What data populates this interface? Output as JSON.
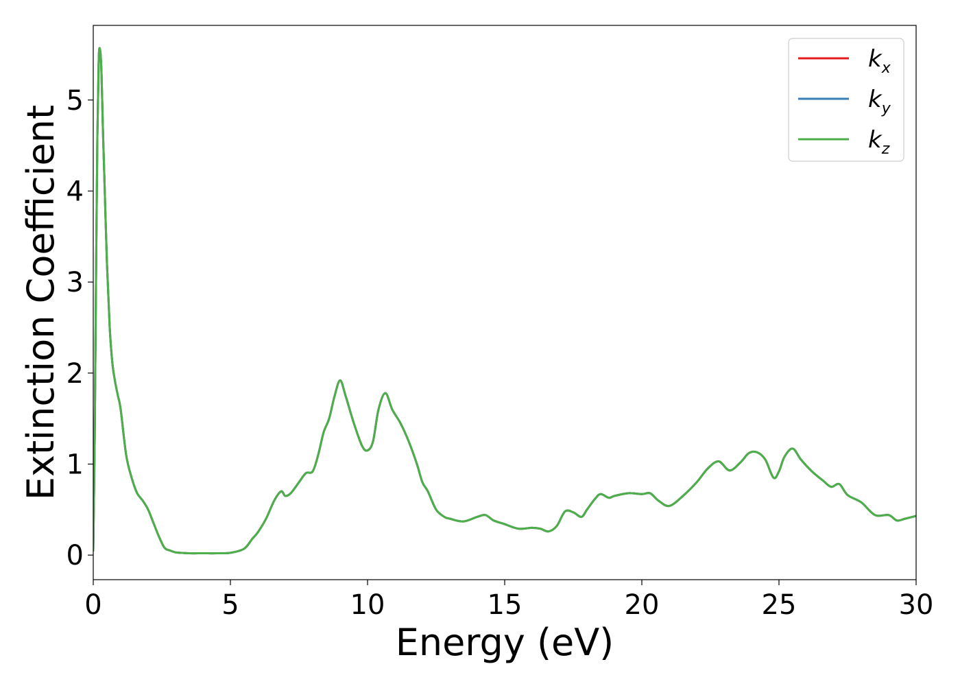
{
  "chart_data": {
    "type": "line",
    "title": "",
    "xlabel": "Energy (eV)",
    "ylabel": "Extinction Coefficient",
    "xlim": [
      0,
      30
    ],
    "ylim": [
      -0.27,
      5.82
    ],
    "xticks": [
      0,
      5,
      10,
      15,
      20,
      25,
      30
    ],
    "xtick_labels": [
      "0",
      "5",
      "10",
      "15",
      "20",
      "25",
      "30"
    ],
    "yticks": [
      0,
      1,
      2,
      3,
      4,
      5
    ],
    "ytick_labels": [
      "0",
      "1",
      "2",
      "3",
      "4",
      "5"
    ],
    "grid": false,
    "legend_position": "top-right",
    "series": [
      {
        "name": "kx",
        "label_main": "k",
        "label_sub": "x",
        "color": "#e41a1c",
        "x": [
          0,
          0.05,
          0.1,
          0.15,
          0.2,
          0.25,
          0.3,
          0.35,
          0.4,
          0.5,
          0.6,
          0.7,
          0.8,
          0.9,
          1.0,
          1.2,
          1.4,
          1.6,
          1.8,
          2.0,
          2.2,
          2.4,
          2.6,
          2.8,
          3.0,
          3.2,
          3.5,
          4.0,
          4.5,
          5.0,
          5.5,
          5.8,
          6.0,
          6.3,
          6.6,
          6.85,
          7.0,
          7.2,
          7.5,
          7.75,
          8.0,
          8.2,
          8.4,
          8.6,
          8.8,
          9.0,
          9.2,
          9.5,
          9.8,
          10.0,
          10.2,
          10.4,
          10.65,
          10.9,
          11.2,
          11.5,
          11.8,
          12.0,
          12.2,
          12.5,
          12.8,
          13.0,
          13.5,
          14.0,
          14.3,
          14.6,
          15.0,
          15.5,
          16.0,
          16.3,
          16.6,
          16.9,
          17.2,
          17.5,
          17.8,
          18.0,
          18.3,
          18.5,
          18.8,
          19.0,
          19.5,
          20.0,
          20.3,
          20.6,
          21.0,
          21.5,
          22.0,
          22.4,
          22.8,
          23.2,
          23.6,
          23.9,
          24.2,
          24.5,
          24.8,
          25.0,
          25.2,
          25.5,
          25.8,
          26.2,
          26.6,
          26.9,
          27.2,
          27.5,
          28.0,
          28.5,
          29.0,
          29.3,
          29.6,
          30.0
        ],
        "y": [
          0.05,
          1.2,
          3.0,
          4.6,
          5.45,
          5.55,
          5.3,
          4.7,
          4.2,
          3.2,
          2.5,
          2.1,
          1.9,
          1.75,
          1.6,
          1.1,
          0.85,
          0.68,
          0.6,
          0.5,
          0.35,
          0.2,
          0.08,
          0.05,
          0.03,
          0.025,
          0.02,
          0.02,
          0.02,
          0.025,
          0.07,
          0.18,
          0.25,
          0.4,
          0.6,
          0.7,
          0.65,
          0.68,
          0.8,
          0.9,
          0.92,
          1.1,
          1.35,
          1.5,
          1.75,
          1.92,
          1.75,
          1.45,
          1.2,
          1.15,
          1.25,
          1.6,
          1.78,
          1.6,
          1.45,
          1.25,
          1.0,
          0.8,
          0.7,
          0.5,
          0.42,
          0.4,
          0.37,
          0.42,
          0.44,
          0.38,
          0.34,
          0.29,
          0.3,
          0.29,
          0.26,
          0.32,
          0.48,
          0.47,
          0.42,
          0.5,
          0.62,
          0.67,
          0.63,
          0.65,
          0.68,
          0.67,
          0.68,
          0.6,
          0.54,
          0.65,
          0.8,
          0.95,
          1.03,
          0.93,
          1.02,
          1.12,
          1.13,
          1.05,
          0.85,
          0.92,
          1.08,
          1.17,
          1.05,
          0.92,
          0.82,
          0.75,
          0.78,
          0.66,
          0.58,
          0.44,
          0.44,
          0.38,
          0.4,
          0.43
        ]
      },
      {
        "name": "ky",
        "label_main": "k",
        "label_sub": "y",
        "color": "#377eb8",
        "x": [
          0,
          0.05,
          0.1,
          0.15,
          0.2,
          0.25,
          0.3,
          0.35,
          0.4,
          0.5,
          0.6,
          0.7,
          0.8,
          0.9,
          1.0,
          1.2,
          1.4,
          1.6,
          1.8,
          2.0,
          2.2,
          2.4,
          2.6,
          2.8,
          3.0,
          3.2,
          3.5,
          4.0,
          4.5,
          5.0,
          5.5,
          5.8,
          6.0,
          6.3,
          6.6,
          6.85,
          7.0,
          7.2,
          7.5,
          7.75,
          8.0,
          8.2,
          8.4,
          8.6,
          8.8,
          9.0,
          9.2,
          9.5,
          9.8,
          10.0,
          10.2,
          10.4,
          10.65,
          10.9,
          11.2,
          11.5,
          11.8,
          12.0,
          12.2,
          12.5,
          12.8,
          13.0,
          13.5,
          14.0,
          14.3,
          14.6,
          15.0,
          15.5,
          16.0,
          16.3,
          16.6,
          16.9,
          17.2,
          17.5,
          17.8,
          18.0,
          18.3,
          18.5,
          18.8,
          19.0,
          19.5,
          20.0,
          20.3,
          20.6,
          21.0,
          21.5,
          22.0,
          22.4,
          22.8,
          23.2,
          23.6,
          23.9,
          24.2,
          24.5,
          24.8,
          25.0,
          25.2,
          25.5,
          25.8,
          26.2,
          26.6,
          26.9,
          27.2,
          27.5,
          28.0,
          28.5,
          29.0,
          29.3,
          29.6,
          30.0
        ],
        "y": [
          0.05,
          1.2,
          3.0,
          4.6,
          5.45,
          5.55,
          5.3,
          4.7,
          4.2,
          3.2,
          2.5,
          2.1,
          1.9,
          1.75,
          1.6,
          1.1,
          0.85,
          0.68,
          0.6,
          0.5,
          0.35,
          0.2,
          0.08,
          0.05,
          0.03,
          0.025,
          0.02,
          0.02,
          0.02,
          0.025,
          0.07,
          0.18,
          0.25,
          0.4,
          0.6,
          0.7,
          0.65,
          0.68,
          0.8,
          0.9,
          0.92,
          1.1,
          1.35,
          1.5,
          1.75,
          1.92,
          1.75,
          1.45,
          1.2,
          1.15,
          1.25,
          1.6,
          1.78,
          1.6,
          1.45,
          1.25,
          1.0,
          0.8,
          0.7,
          0.5,
          0.42,
          0.4,
          0.37,
          0.42,
          0.44,
          0.38,
          0.34,
          0.29,
          0.3,
          0.29,
          0.26,
          0.32,
          0.48,
          0.47,
          0.42,
          0.5,
          0.62,
          0.67,
          0.63,
          0.65,
          0.68,
          0.67,
          0.68,
          0.6,
          0.54,
          0.65,
          0.8,
          0.95,
          1.03,
          0.93,
          1.02,
          1.12,
          1.13,
          1.05,
          0.85,
          0.92,
          1.08,
          1.17,
          1.05,
          0.92,
          0.82,
          0.75,
          0.78,
          0.66,
          0.58,
          0.44,
          0.44,
          0.38,
          0.4,
          0.43
        ]
      },
      {
        "name": "kz",
        "label_main": "k",
        "label_sub": "z",
        "color": "#4daf4a",
        "x": [
          0,
          0.05,
          0.1,
          0.15,
          0.2,
          0.25,
          0.3,
          0.35,
          0.4,
          0.5,
          0.6,
          0.7,
          0.8,
          0.9,
          1.0,
          1.2,
          1.4,
          1.6,
          1.8,
          2.0,
          2.2,
          2.4,
          2.6,
          2.8,
          3.0,
          3.2,
          3.5,
          4.0,
          4.5,
          5.0,
          5.5,
          5.8,
          6.0,
          6.3,
          6.6,
          6.85,
          7.0,
          7.2,
          7.5,
          7.75,
          8.0,
          8.2,
          8.4,
          8.6,
          8.8,
          9.0,
          9.2,
          9.5,
          9.8,
          10.0,
          10.2,
          10.4,
          10.65,
          10.9,
          11.2,
          11.5,
          11.8,
          12.0,
          12.2,
          12.5,
          12.8,
          13.0,
          13.5,
          14.0,
          14.3,
          14.6,
          15.0,
          15.5,
          16.0,
          16.3,
          16.6,
          16.9,
          17.2,
          17.5,
          17.8,
          18.0,
          18.3,
          18.5,
          18.8,
          19.0,
          19.5,
          20.0,
          20.3,
          20.6,
          21.0,
          21.5,
          22.0,
          22.4,
          22.8,
          23.2,
          23.6,
          23.9,
          24.2,
          24.5,
          24.8,
          25.0,
          25.2,
          25.5,
          25.8,
          26.2,
          26.6,
          26.9,
          27.2,
          27.5,
          28.0,
          28.5,
          29.0,
          29.3,
          29.6,
          30.0
        ],
        "y": [
          0.05,
          1.2,
          3.0,
          4.6,
          5.45,
          5.55,
          5.3,
          4.7,
          4.2,
          3.2,
          2.5,
          2.1,
          1.9,
          1.75,
          1.6,
          1.1,
          0.85,
          0.68,
          0.6,
          0.5,
          0.35,
          0.2,
          0.08,
          0.05,
          0.03,
          0.025,
          0.02,
          0.02,
          0.02,
          0.025,
          0.07,
          0.18,
          0.25,
          0.4,
          0.6,
          0.7,
          0.65,
          0.68,
          0.8,
          0.9,
          0.92,
          1.1,
          1.35,
          1.5,
          1.75,
          1.92,
          1.75,
          1.45,
          1.2,
          1.15,
          1.25,
          1.6,
          1.78,
          1.6,
          1.45,
          1.25,
          1.0,
          0.8,
          0.7,
          0.5,
          0.42,
          0.4,
          0.37,
          0.42,
          0.44,
          0.38,
          0.34,
          0.29,
          0.3,
          0.29,
          0.26,
          0.32,
          0.48,
          0.47,
          0.42,
          0.5,
          0.62,
          0.67,
          0.63,
          0.65,
          0.68,
          0.67,
          0.68,
          0.6,
          0.54,
          0.65,
          0.8,
          0.95,
          1.03,
          0.93,
          1.02,
          1.12,
          1.13,
          1.05,
          0.85,
          0.92,
          1.08,
          1.17,
          1.05,
          0.92,
          0.82,
          0.75,
          0.78,
          0.66,
          0.58,
          0.44,
          0.44,
          0.38,
          0.4,
          0.43
        ]
      }
    ]
  }
}
